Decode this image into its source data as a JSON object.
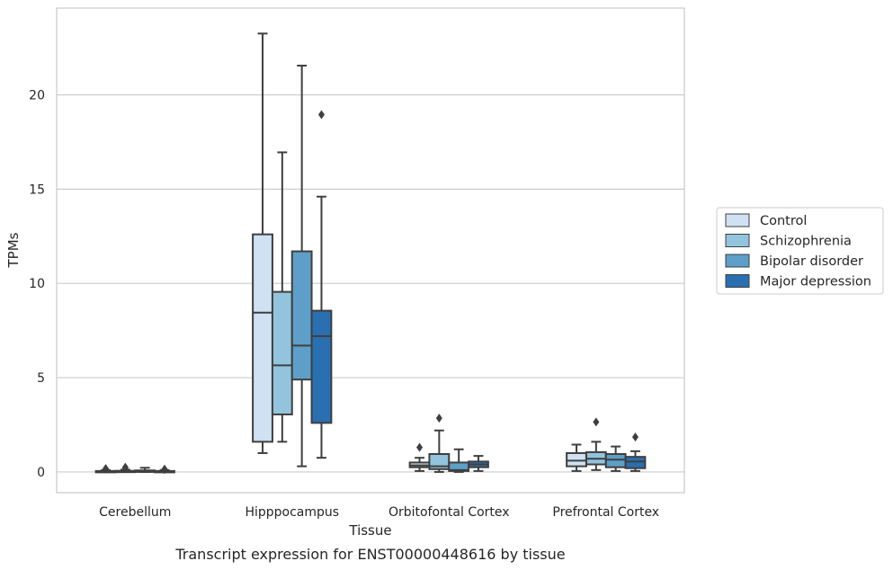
{
  "chart_data": {
    "type": "boxplot",
    "xlabel": "Tissue",
    "ylabel": "TPMs",
    "caption": "Transcript expression for ENST00000448616 by tissue",
    "ylim": [
      -1.1,
      24.6
    ],
    "yticks": [
      0,
      5,
      10,
      15,
      20
    ],
    "ytick_labels": [
      "0",
      "5",
      "10",
      "15",
      "20"
    ],
    "grid": "horizontal",
    "legend_position": "right",
    "categories": [
      "Cerebellum",
      "Hipppocampus",
      "Orbitofontal Cortex",
      "Prefrontal Cortex"
    ],
    "series": [
      {
        "name": "Control",
        "color": "#cfe1f2",
        "boxes": [
          {
            "whislo": 0.0,
            "q1": 0.0,
            "med": 0.02,
            "q3": 0.05,
            "whishi": 0.1,
            "fliers": [
              0.15,
              0.18
            ]
          },
          {
            "whislo": 1.0,
            "q1": 1.6,
            "med": 8.45,
            "q3": 12.6,
            "whishi": 23.25,
            "fliers": []
          },
          {
            "whislo": 0.05,
            "q1": 0.25,
            "med": 0.35,
            "q3": 0.5,
            "whishi": 0.75,
            "fliers": [
              1.3
            ]
          },
          {
            "whislo": 0.05,
            "q1": 0.3,
            "med": 0.6,
            "q3": 1.0,
            "whishi": 1.45,
            "fliers": []
          }
        ]
      },
      {
        "name": "Schizophrenia",
        "color": "#93c4de",
        "boxes": [
          {
            "whislo": 0.0,
            "q1": 0.0,
            "med": 0.02,
            "q3": 0.06,
            "whishi": 0.12,
            "fliers": [
              0.2,
              0.25
            ]
          },
          {
            "whislo": 1.6,
            "q1": 3.05,
            "med": 5.65,
            "q3": 9.55,
            "whishi": 16.95,
            "fliers": []
          },
          {
            "whislo": 0.0,
            "q1": 0.15,
            "med": 0.3,
            "q3": 0.95,
            "whishi": 2.2,
            "fliers": [
              2.85
            ]
          },
          {
            "whislo": 0.1,
            "q1": 0.4,
            "med": 0.7,
            "q3": 1.05,
            "whishi": 1.6,
            "fliers": [
              2.65
            ]
          }
        ]
      },
      {
        "name": "Bipolar disorder",
        "color": "#5d9fc9",
        "boxes": [
          {
            "whislo": 0.0,
            "q1": 0.0,
            "med": 0.02,
            "q3": 0.08,
            "whishi": 0.22,
            "fliers": []
          },
          {
            "whislo": 0.3,
            "q1": 4.9,
            "med": 6.7,
            "q3": 11.7,
            "whishi": 21.55,
            "fliers": []
          },
          {
            "whislo": 0.0,
            "q1": 0.05,
            "med": 0.1,
            "q3": 0.5,
            "whishi": 1.2,
            "fliers": []
          },
          {
            "whislo": 0.05,
            "q1": 0.25,
            "med": 0.65,
            "q3": 0.95,
            "whishi": 1.35,
            "fliers": []
          }
        ]
      },
      {
        "name": "Major depression",
        "color": "#2a6fb0",
        "boxes": [
          {
            "whislo": 0.0,
            "q1": 0.0,
            "med": 0.02,
            "q3": 0.05,
            "whishi": 0.1,
            "fliers": [
              0.12,
              0.15
            ]
          },
          {
            "whislo": 0.75,
            "q1": 2.6,
            "med": 7.2,
            "q3": 8.55,
            "whishi": 14.6,
            "fliers": [
              18.95
            ]
          },
          {
            "whislo": 0.05,
            "q1": 0.25,
            "med": 0.4,
            "q3": 0.55,
            "whishi": 0.85,
            "fliers": []
          },
          {
            "whislo": 0.05,
            "q1": 0.2,
            "med": 0.55,
            "q3": 0.8,
            "whishi": 1.1,
            "fliers": [
              1.85
            ]
          }
        ]
      }
    ]
  }
}
